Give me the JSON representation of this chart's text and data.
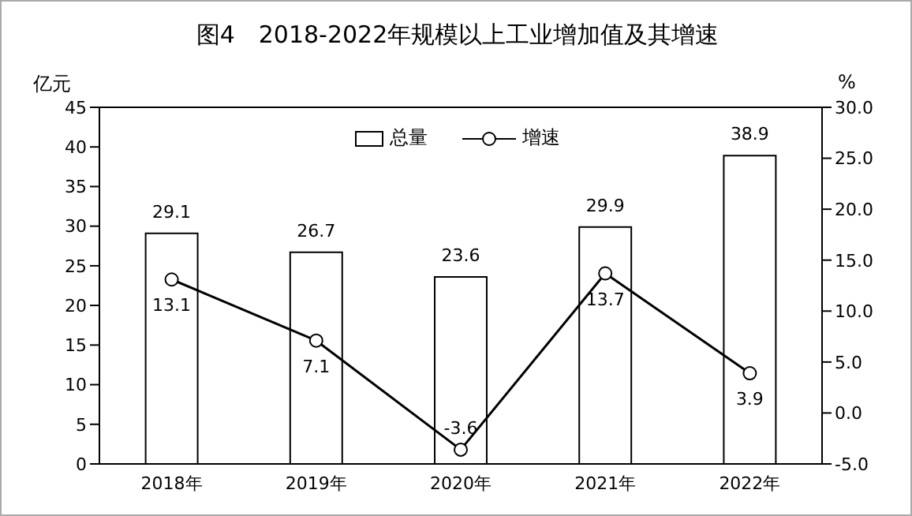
{
  "chart_data": {
    "type": "bar",
    "title": "图4　2018-2022年规模以上工业增加值及其增速",
    "ylabel": "亿元",
    "y2label": "%",
    "categories": [
      "2018年",
      "2019年",
      "2020年",
      "2021年",
      "2022年"
    ],
    "series": [
      {
        "name": "总量",
        "color": "#ffffff",
        "values": [
          29.1,
          26.7,
          23.6,
          29.9,
          38.9
        ]
      },
      {
        "name": "增速",
        "type": "line",
        "axis": "y2",
        "color": "#000000",
        "marker": "circle",
        "values": [
          13.1,
          7.1,
          -3.6,
          13.7,
          3.9
        ]
      }
    ],
    "ylim": [
      0,
      45
    ],
    "yticks": [
      0,
      5,
      10,
      15,
      20,
      25,
      30,
      35,
      40,
      45
    ],
    "y2lim": [
      -5,
      30
    ],
    "y2ticks": [
      {
        "value": -5,
        "label": "-5.0"
      },
      {
        "value": 0,
        "label": "0.0"
      },
      {
        "value": 5,
        "label": "5.0"
      },
      {
        "value": 10,
        "label": "10.0"
      },
      {
        "value": 15,
        "label": "15.0"
      },
      {
        "value": 20,
        "label": "20.0"
      },
      {
        "value": 25,
        "label": "25.0"
      },
      {
        "value": 30,
        "label": "30.0"
      }
    ],
    "data_labels": true,
    "legend": "top",
    "grid": false
  }
}
